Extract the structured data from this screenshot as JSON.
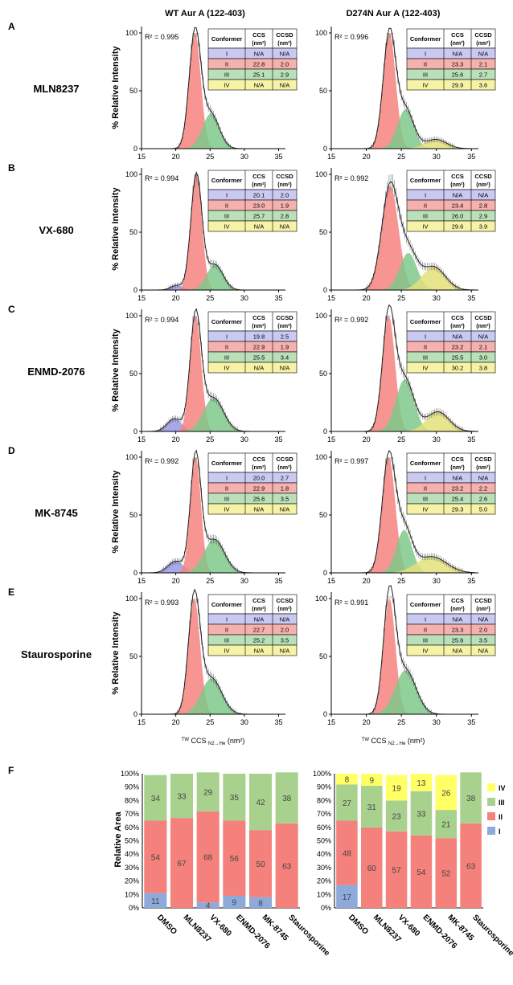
{
  "columns": [
    "WT Aur A (122-403)",
    "D274N Aur A (122-403)"
  ],
  "rows": [
    {
      "letter": "A",
      "drug": "MLN8237",
      "panels": [
        {
          "r2": "R² = 0.995",
          "table": [
            [
              "I",
              "N/A",
              "N/A"
            ],
            [
              "II",
              "22.8",
              "2.0"
            ],
            [
              "III",
              "25.1",
              "2.9"
            ],
            [
              "IV",
              "N/A",
              "N/A"
            ]
          ]
        },
        {
          "r2": "R² = 0.996",
          "table": [
            [
              "I",
              "N/A",
              "N/A"
            ],
            [
              "II",
              "23.3",
              "2.1"
            ],
            [
              "III",
              "25.6",
              "2.7"
            ],
            [
              "IV",
              "29.9",
              "3.6"
            ]
          ]
        }
      ]
    },
    {
      "letter": "B",
      "drug": "VX-680",
      "panels": [
        {
          "r2": "R² = 0.994",
          "table": [
            [
              "I",
              "20.1",
              "2.0"
            ],
            [
              "II",
              "23.0",
              "1.9"
            ],
            [
              "III",
              "25.7",
              "2.8"
            ],
            [
              "IV",
              "N/A",
              "N/A"
            ]
          ]
        },
        {
          "r2": "R² = 0.992",
          "table": [
            [
              "I",
              "N/A",
              "N/A"
            ],
            [
              "II",
              "23.4",
              "2.8"
            ],
            [
              "III",
              "26.0",
              "2.9"
            ],
            [
              "IV",
              "29.6",
              "3.9"
            ]
          ]
        }
      ]
    },
    {
      "letter": "C",
      "drug": "ENMD-2076",
      "panels": [
        {
          "r2": "R² = 0.994",
          "table": [
            [
              "I",
              "19.8",
              "2.5"
            ],
            [
              "II",
              "22.9",
              "1.9"
            ],
            [
              "III",
              "25.5",
              "3.4"
            ],
            [
              "IV",
              "N/A",
              "N/A"
            ]
          ]
        },
        {
          "r2": "R² = 0.992",
          "table": [
            [
              "I",
              "N/A",
              "N/A"
            ],
            [
              "II",
              "23.2",
              "2.1"
            ],
            [
              "III",
              "25.5",
              "3.0"
            ],
            [
              "IV",
              "30.2",
              "3.8"
            ]
          ]
        }
      ]
    },
    {
      "letter": "D",
      "drug": "MK-8745",
      "panels": [
        {
          "r2": "R² = 0.992",
          "table": [
            [
              "I",
              "20.0",
              "2.7"
            ],
            [
              "II",
              "22.9",
              "1.8"
            ],
            [
              "III",
              "25.6",
              "3.5"
            ],
            [
              "IV",
              "N/A",
              "N/A"
            ]
          ]
        },
        {
          "r2": "R² = 0.997",
          "table": [
            [
              "I",
              "N/A",
              "N/A"
            ],
            [
              "II",
              "23.2",
              "2.2"
            ],
            [
              "III",
              "25.4",
              "2.6"
            ],
            [
              "IV",
              "29.3",
              "5.0"
            ]
          ]
        }
      ]
    },
    {
      "letter": "E",
      "drug": "Staurosporine",
      "panels": [
        {
          "r2": "R² = 0.993",
          "table": [
            [
              "I",
              "N/A",
              "N/A"
            ],
            [
              "II",
              "22.7",
              "2.0"
            ],
            [
              "III",
              "25.2",
              "3.5"
            ],
            [
              "IV",
              "N/A",
              "N/A"
            ]
          ]
        },
        {
          "r2": "R² = 0.991",
          "table": [
            [
              "I",
              "N/A",
              "N/A"
            ],
            [
              "II",
              "23.3",
              "2.0"
            ],
            [
              "III",
              "25.6",
              "3.5"
            ],
            [
              "IV",
              "N/A",
              "N/A"
            ]
          ]
        }
      ]
    }
  ],
  "table_headers": [
    "Conformer",
    "CCS",
    "CCSD",
    "(nm²)",
    "(nm²)"
  ],
  "ylabel_line": "% Relative Intensity",
  "xlabel_line": "TW CCS N2→He (nm²)",
  "xlabel_parts": {
    "pre": "TW",
    "main": " CCS ",
    "sub": "N2→He",
    "post": " (nm²)"
  },
  "line_x_ticks": [
    "15",
    "20",
    "25",
    "30",
    "35"
  ],
  "line_y_ticks": [
    "0",
    "50",
    "100"
  ],
  "conformer_colors": {
    "I": "#9999e6",
    "II": "#f4827e",
    "III": "#7fc98a",
    "IV": "#e3e07a"
  },
  "table_colors": {
    "I": "#c9c9f2",
    "II": "#f6b1ae",
    "III": "#b9e0b9",
    "IV": "#f6f2a6"
  },
  "chart_data": [
    {
      "type": "line",
      "title": "",
      "xlabel": "TW CCS N2→He (nm²)",
      "ylabel": "% Relative Intensity",
      "xlim": [
        15,
        36
      ],
      "ylim": [
        0,
        100
      ],
      "series": [
        {
          "name": "WT Aur A (122-403)",
          "gaussians": {
            "MLN8237": [
              {
                "c": 22.8,
                "w": 2.0,
                "h": 100
              },
              {
                "c": 25.1,
                "w": 2.9,
                "h": 30
              }
            ],
            "VX-680": [
              {
                "c": 20.1,
                "w": 2.0,
                "h": 4
              },
              {
                "c": 23.0,
                "w": 1.9,
                "h": 100
              },
              {
                "c": 25.7,
                "w": 2.8,
                "h": 22
              }
            ],
            "ENMD-2076": [
              {
                "c": 19.8,
                "w": 2.5,
                "h": 11
              },
              {
                "c": 22.9,
                "w": 1.9,
                "h": 100
              },
              {
                "c": 25.5,
                "w": 3.4,
                "h": 29
              }
            ],
            "MK-8745": [
              {
                "c": 20.0,
                "w": 2.7,
                "h": 10
              },
              {
                "c": 22.9,
                "w": 1.8,
                "h": 100
              },
              {
                "c": 25.6,
                "w": 3.5,
                "h": 29
              }
            ],
            "Staurosporine": [
              {
                "c": 22.7,
                "w": 2.0,
                "h": 100
              },
              {
                "c": 25.2,
                "w": 3.5,
                "h": 31
              }
            ]
          }
        },
        {
          "name": "D274N Aur A (122-403)",
          "gaussians": {
            "MLN8237": [
              {
                "c": 23.3,
                "w": 2.1,
                "h": 100
              },
              {
                "c": 25.6,
                "w": 2.7,
                "h": 34
              },
              {
                "c": 29.9,
                "w": 3.6,
                "h": 8
              }
            ],
            "VX-680": [
              {
                "c": 23.4,
                "w": 2.8,
                "h": 90
              },
              {
                "c": 26.0,
                "w": 2.9,
                "h": 32
              },
              {
                "c": 29.6,
                "w": 3.9,
                "h": 20
              }
            ],
            "ENMD-2076": [
              {
                "c": 23.2,
                "w": 2.1,
                "h": 100
              },
              {
                "c": 25.5,
                "w": 3.0,
                "h": 45
              },
              {
                "c": 30.2,
                "w": 3.8,
                "h": 17
              }
            ],
            "MK-8745": [
              {
                "c": 23.2,
                "w": 2.2,
                "h": 100
              },
              {
                "c": 25.4,
                "w": 2.6,
                "h": 37
              },
              {
                "c": 29.3,
                "w": 5.0,
                "h": 14
              }
            ],
            "Staurosporine": [
              {
                "c": 23.3,
                "w": 2.0,
                "h": 100
              },
              {
                "c": 25.6,
                "w": 3.5,
                "h": 38
              }
            ]
          }
        }
      ]
    },
    {
      "type": "bar",
      "stacked": true,
      "title": "",
      "ylabel": "Relative Area",
      "ylim": [
        0,
        100
      ],
      "yticks": [
        "0%",
        "10%",
        "20%",
        "30%",
        "40%",
        "50%",
        "60%",
        "70%",
        "80%",
        "90%",
        "100%"
      ],
      "categories": [
        "DMSO",
        "MLN8237",
        "VX-680",
        "ENMD-2076",
        "MK-8745",
        "Staurosporine"
      ],
      "panels": [
        {
          "name": "WT",
          "series": [
            {
              "name": "I",
              "values": [
                11,
                0,
                4,
                9,
                8,
                0
              ],
              "labels": [
                "11",
                "",
                "4",
                "9",
                "8",
                ""
              ]
            },
            {
              "name": "II",
              "values": [
                54,
                67,
                68,
                56,
                50,
                63
              ],
              "labels": [
                "54",
                "67",
                "68",
                "56",
                "50",
                "63"
              ]
            },
            {
              "name": "III",
              "values": [
                34,
                33,
                29,
                35,
                42,
                38
              ],
              "labels": [
                "34",
                "33",
                "29",
                "35",
                "42",
                "38"
              ]
            },
            {
              "name": "IV",
              "values": [
                0,
                0,
                0,
                0,
                0,
                0
              ],
              "labels": [
                "",
                "",
                "",
                "",
                "",
                ""
              ]
            }
          ]
        },
        {
          "name": "D274N",
          "series": [
            {
              "name": "I",
              "values": [
                17,
                0,
                0,
                0,
                0,
                0
              ],
              "labels": [
                "17",
                "",
                "",
                "",
                "",
                ""
              ]
            },
            {
              "name": "II",
              "values": [
                48,
                60,
                57,
                54,
                52,
                63
              ],
              "labels": [
                "48",
                "60",
                "57",
                "54",
                "52",
                "63"
              ]
            },
            {
              "name": "III",
              "values": [
                27,
                31,
                23,
                33,
                21,
                38
              ],
              "labels": [
                "27",
                "31",
                "23",
                "33",
                "21",
                "38"
              ]
            },
            {
              "name": "IV",
              "values": [
                8,
                9,
                19,
                13,
                26,
                0
              ],
              "labels": [
                "8",
                "9",
                "19",
                "13",
                "26",
                ""
              ]
            }
          ]
        }
      ],
      "legend": [
        "IV",
        "III",
        "II",
        "I"
      ],
      "legend_position": "right",
      "colors": {
        "I": "#8eaadb",
        "II": "#f4817c",
        "III": "#a9d18e",
        "IV": "#ffff66"
      }
    }
  ],
  "panel_f_letter": "F"
}
